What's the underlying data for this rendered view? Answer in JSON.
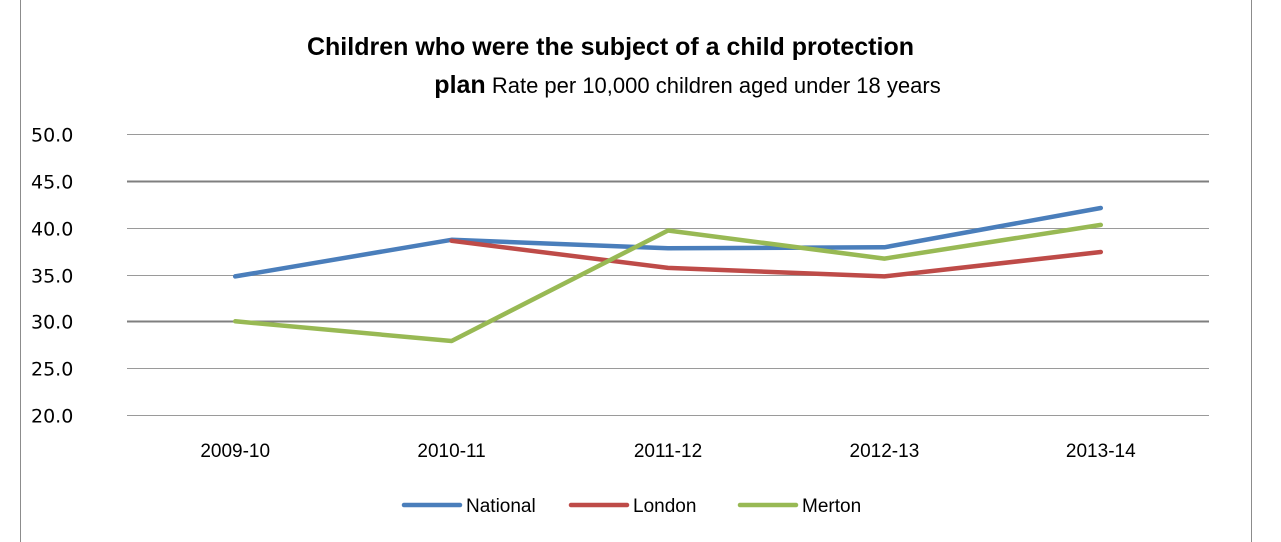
{
  "title": {
    "bold_part_1": "Children who were the subject of a child protection",
    "bold_part_2": "plan",
    "normal_part": "Rate per 10,000 children aged under 18 years"
  },
  "chart_data": {
    "type": "line",
    "categories": [
      "2009-10",
      "2010-11",
      "2011-12",
      "2012-13",
      "2013-14"
    ],
    "series": [
      {
        "name": "National",
        "color": "#4a7ebb",
        "values": [
          34.8,
          38.7,
          37.8,
          37.9,
          42.1
        ]
      },
      {
        "name": "London",
        "color": "#be4b48",
        "values": [
          null,
          38.6,
          35.7,
          34.8,
          37.4
        ]
      },
      {
        "name": "Merton",
        "color": "#98b954",
        "values": [
          30.0,
          27.9,
          39.7,
          36.7,
          40.3
        ]
      }
    ],
    "ylim": [
      20.0,
      50.0
    ],
    "yticks": [
      "50.0",
      "45.0",
      "40.0",
      "35.0",
      "30.0",
      "25.0",
      "20.0"
    ],
    "ytick_values": [
      50,
      45,
      40,
      35,
      30,
      25,
      20
    ],
    "grid": true,
    "legend": "bottom"
  }
}
